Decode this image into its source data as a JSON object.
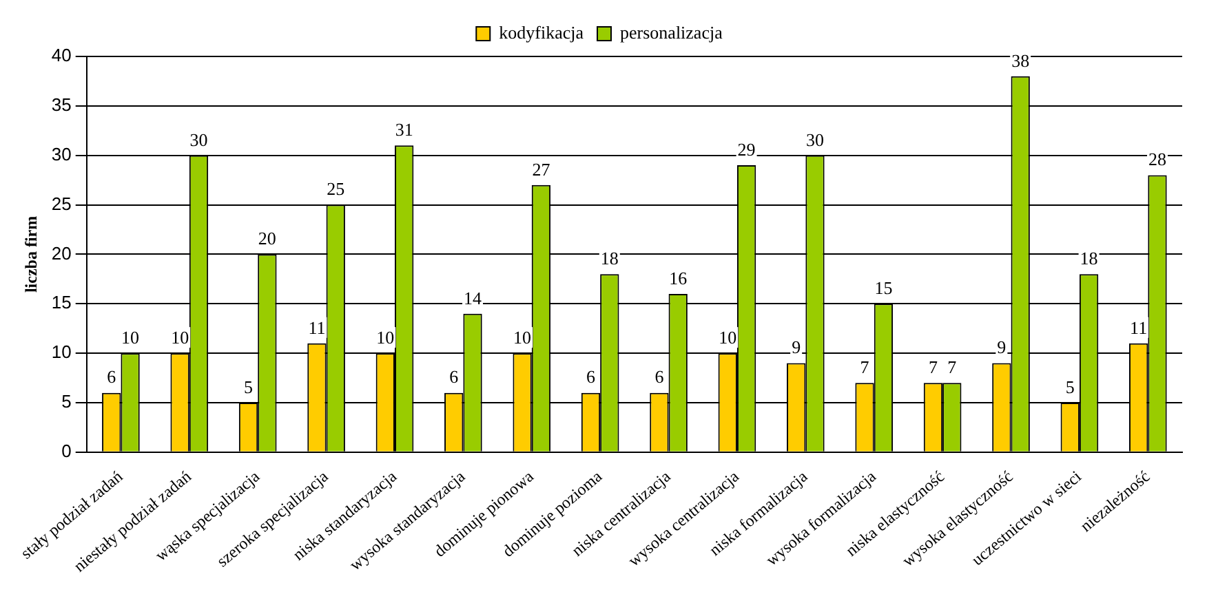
{
  "chart_data": {
    "type": "bar",
    "ylabel": "liczba firm",
    "categories": [
      "stały podział zadań",
      "niestały podział zadań",
      "wąska specjalizacja",
      "szeroka specjalizacja",
      "niska standaryzacja",
      "wysoka standaryzacja",
      "dominuje pionowa",
      "dominuje pozioma",
      "niska centralizacja",
      "wysoka centralizacja",
      "niska formalizacja",
      "wysoka formalizacja",
      "niska elastyczność",
      "wysoka elastyczność",
      "uczestnictwo w sieci",
      "niezależność"
    ],
    "series": [
      {
        "name": "kodyfikacja",
        "color": "#ffcc00",
        "values": [
          6,
          10,
          5,
          11,
          10,
          6,
          10,
          6,
          6,
          10,
          9,
          7,
          7,
          9,
          5,
          11
        ]
      },
      {
        "name": "personalizacja",
        "color": "#99cc00",
        "values": [
          10,
          30,
          20,
          25,
          31,
          14,
          27,
          18,
          16,
          29,
          30,
          15,
          7,
          38,
          18,
          28
        ]
      }
    ],
    "ylim": [
      0,
      40
    ],
    "yticks": [
      0,
      5,
      10,
      15,
      20,
      25,
      30,
      35,
      40
    ],
    "grid": "y",
    "legend": "top",
    "data_labels": true
  }
}
